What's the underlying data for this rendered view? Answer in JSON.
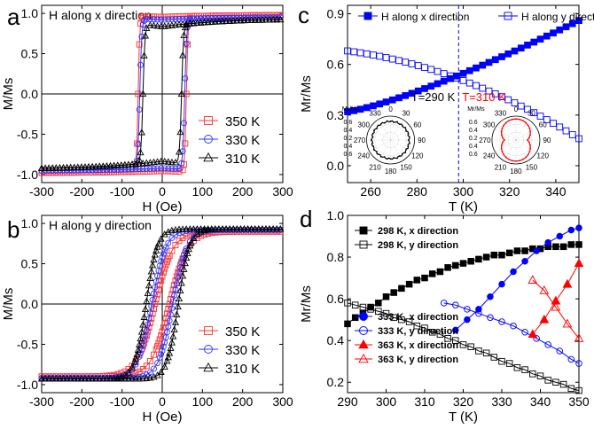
{
  "figure": {
    "panel_labels": [
      "a",
      "b",
      "c",
      "d"
    ]
  },
  "chart_data": [
    {
      "id": "a",
      "type": "line",
      "title": "H along x direction",
      "xlabel": "H (Oe)",
      "ylabel": "M/Ms",
      "xlim": [
        -300,
        300
      ],
      "ylim": [
        -1.1,
        1.1
      ],
      "xticks": [
        -300,
        -200,
        -100,
        0,
        100,
        200,
        300
      ],
      "yticks": [
        -1.0,
        -0.5,
        0.0,
        0.5,
        1.0
      ],
      "ytick_labels": [
        "-1.0",
        "-0.5",
        "0.0",
        "0.5",
        "1.0"
      ],
      "legend": "bottom-right",
      "series": [
        {
          "name": "350 K",
          "color": "#ff3333",
          "marker": "square",
          "ms": 0.98,
          "hc": 60,
          "w": 4,
          "k": 0.2
        },
        {
          "name": "330 K",
          "color": "#3333ff",
          "marker": "circle",
          "ms": 0.955,
          "hc": 56,
          "w": 5,
          "k": 0.3
        },
        {
          "name": "310 K",
          "color": "#000000",
          "marker": "triangle",
          "ms": 0.93,
          "hc": 48,
          "w": 5,
          "k": 0.85
        }
      ]
    },
    {
      "id": "b",
      "type": "line",
      "title": "H along y direction",
      "xlabel": "H (Oe)",
      "ylabel": "M/Ms",
      "xlim": [
        -300,
        300
      ],
      "ylim": [
        -1.1,
        1.1
      ],
      "xticks": [
        -300,
        -200,
        -100,
        0,
        100,
        200,
        300
      ],
      "yticks": [
        -1.0,
        -0.5,
        0.0,
        0.5,
        1.0
      ],
      "ytick_labels": [
        "-1.0",
        "-0.5",
        "0.0",
        "0.5",
        "1.0"
      ],
      "legend": "bottom-right",
      "series": [
        {
          "name": "350 K",
          "color": "#ff3333",
          "marker": "square",
          "ms": 0.9,
          "hc": 18,
          "w": 45
        },
        {
          "name": "330 K",
          "color": "#3333ff",
          "marker": "circle",
          "ms": 0.92,
          "hc": 26,
          "w": 35
        },
        {
          "name": "310 K",
          "color": "#000000",
          "marker": "triangle",
          "ms": 0.93,
          "hc": 40,
          "w": 28
        }
      ]
    },
    {
      "id": "c",
      "type": "scatter",
      "xlabel": "T (K)",
      "ylabel": "Mr/Ms",
      "xlim": [
        250,
        350
      ],
      "ylim": [
        -0.1,
        0.95
      ],
      "xticks": [
        260,
        280,
        300,
        320,
        340
      ],
      "yticks": [
        0.0,
        0.3,
        0.6,
        0.9
      ],
      "ytick_labels": [
        "0.0",
        "0.3",
        "0.6",
        "0.9"
      ],
      "legend": "top",
      "vline": 298,
      "annotations": [
        "T=290 K",
        "T=310 K"
      ],
      "series": [
        {
          "name": "H along x direction",
          "color": "#0000ff",
          "marker": "square-filled",
          "x_start": 250,
          "x_end": 350,
          "count": 37,
          "y_start": 0.32,
          "y_mid": 0.56,
          "y_end": 0.86
        },
        {
          "name": "H along y direction",
          "color": "#0000ff",
          "marker": "square",
          "x_start": 250,
          "x_end": 350,
          "count": 37,
          "y_start": 0.68,
          "y_mid": 0.55,
          "y_end": 0.16
        }
      ],
      "insets": [
        {
          "label": "Mr/Ms",
          "angles": [
            "0",
            "30",
            "60",
            "90",
            "120",
            "150",
            "180",
            "210",
            "240",
            "270",
            "300",
            "330"
          ],
          "radial_ticks": [
            "0.6",
            "0.4",
            "0.2",
            "0.4",
            "0.6"
          ],
          "shape": "circle",
          "color": "#000000"
        },
        {
          "label": "Mr/Ms",
          "angles": [
            "0",
            "30",
            "60",
            "90",
            "120",
            "150",
            "180",
            "210",
            "240",
            "270",
            "300",
            "330"
          ],
          "radial_ticks": [
            "0.6",
            "0.4",
            "0.2",
            "0.4",
            "0.6"
          ],
          "shape": "dumbbell",
          "color": "#ff0000"
        }
      ]
    },
    {
      "id": "d",
      "type": "line",
      "xlabel": "T (K)",
      "ylabel": "Mr/Ms",
      "xlim": [
        290,
        350
      ],
      "ylim": [
        0.15,
        1.0
      ],
      "xticks": [
        290,
        300,
        310,
        320,
        330,
        340,
        350
      ],
      "yticks": [
        0.2,
        0.4,
        0.6,
        0.8,
        1.0
      ],
      "ytick_labels": [
        "0.2",
        "0.4",
        "0.6",
        "0.8",
        "1.0"
      ],
      "legend": "top-left, bottom-left",
      "series": [
        {
          "name": "298 K, x direction",
          "color": "#000000",
          "marker": "square-filled",
          "x": [
            290,
            292,
            294,
            296,
            298,
            300,
            302,
            304,
            306,
            308,
            310,
            312,
            314,
            316,
            318,
            320,
            322,
            324,
            326,
            328,
            330,
            332,
            334,
            336,
            338,
            340,
            342,
            344,
            346,
            348,
            350
          ],
          "y": [
            0.48,
            0.51,
            0.53,
            0.56,
            0.58,
            0.61,
            0.63,
            0.65,
            0.67,
            0.69,
            0.7,
            0.72,
            0.73,
            0.75,
            0.76,
            0.77,
            0.78,
            0.79,
            0.8,
            0.81,
            0.81,
            0.82,
            0.83,
            0.83,
            0.84,
            0.84,
            0.85,
            0.85,
            0.85,
            0.86,
            0.86
          ]
        },
        {
          "name": "298 K, y direction",
          "color": "#000000",
          "marker": "square",
          "x": [
            290,
            292,
            294,
            296,
            298,
            300,
            302,
            304,
            306,
            308,
            310,
            312,
            314,
            316,
            318,
            320,
            322,
            324,
            326,
            328,
            330,
            332,
            334,
            336,
            338,
            340,
            342,
            344,
            346,
            348,
            350
          ],
          "y": [
            0.58,
            0.57,
            0.56,
            0.55,
            0.54,
            0.53,
            0.51,
            0.5,
            0.49,
            0.47,
            0.46,
            0.44,
            0.43,
            0.41,
            0.4,
            0.38,
            0.37,
            0.35,
            0.34,
            0.32,
            0.3,
            0.29,
            0.27,
            0.26,
            0.24,
            0.23,
            0.21,
            0.2,
            0.19,
            0.17,
            0.16
          ]
        },
        {
          "name": "333 K, x direction",
          "color": "#0000ff",
          "marker": "circle-filled",
          "x": [
            318,
            321,
            324,
            327,
            330,
            333,
            336,
            339,
            342,
            345,
            348,
            350
          ],
          "y": [
            0.45,
            0.5,
            0.55,
            0.61,
            0.67,
            0.73,
            0.78,
            0.83,
            0.87,
            0.9,
            0.93,
            0.94
          ]
        },
        {
          "name": "333 K, y direction",
          "color": "#0000ff",
          "marker": "circle",
          "x": [
            315,
            318,
            321,
            324,
            327,
            330,
            333,
            336,
            339,
            342,
            345,
            348,
            350
          ],
          "y": [
            0.58,
            0.57,
            0.55,
            0.53,
            0.51,
            0.49,
            0.47,
            0.44,
            0.41,
            0.38,
            0.35,
            0.31,
            0.29
          ]
        },
        {
          "name": "363 K, x direction",
          "color": "#ff0000",
          "marker": "triangle-filled",
          "x": [
            338,
            341,
            344,
            347,
            350
          ],
          "y": [
            0.43,
            0.5,
            0.59,
            0.67,
            0.77
          ]
        },
        {
          "name": "363 K, y direction",
          "color": "#ff0000",
          "marker": "triangle",
          "x": [
            338,
            341,
            344,
            347,
            350
          ],
          "y": [
            0.69,
            0.64,
            0.56,
            0.48,
            0.41
          ]
        }
      ]
    }
  ]
}
